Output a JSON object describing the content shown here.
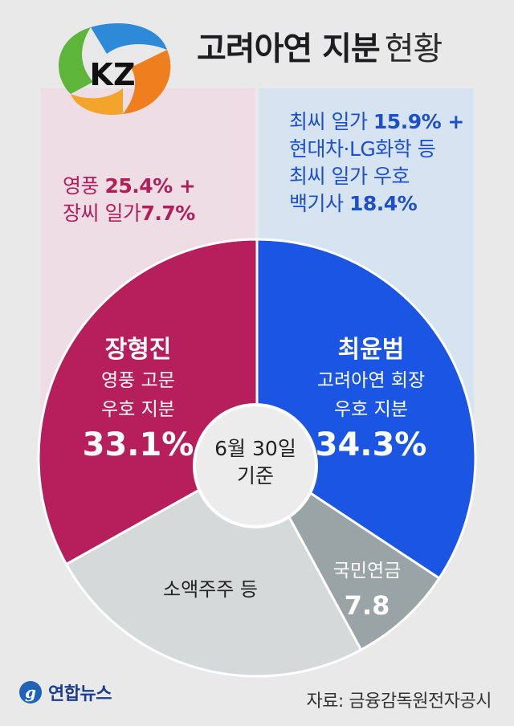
{
  "title": {
    "main": "고려아연 지분",
    "sub": "현황"
  },
  "logo": {
    "text": "KZ"
  },
  "left_panel": {
    "line1": {
      "text": "영풍 ",
      "num": "25.4% +"
    },
    "line2": {
      "text": "장씨 일가",
      "num": "7.7%"
    }
  },
  "right_panel": {
    "line1": {
      "text": "최씨 일가 ",
      "num": "15.9% +"
    },
    "line2": {
      "text": "현대차·LG화학 등"
    },
    "line3": {
      "text": "최씨 일가 우호"
    },
    "line4": {
      "text": "백기사 ",
      "num": "18.4%"
    }
  },
  "center": {
    "line1": "6월 30일",
    "line2": "기준"
  },
  "source": "자료: 금융감독원전자공시",
  "brand": "연합뉴스",
  "colors": {
    "left_panel_bg": "#efdde6",
    "right_panel_bg": "#d6e3f1",
    "jang": "#b61f5c",
    "choi": "#1a55e3",
    "nps": "#9aa3a5",
    "minor": "#d5d9da"
  },
  "chart_data": {
    "type": "pie",
    "title": "고려아연 지분 현황",
    "subtitle": "6월 30일 기준",
    "slices": [
      {
        "name": "최윤범",
        "lines": [
          "최윤범",
          "고려아연 회장",
          "우호 지분"
        ],
        "value": 34.3,
        "label": "34.3%",
        "color": "#1a55e3"
      },
      {
        "name": "국민연금",
        "lines": [
          "국민연금"
        ],
        "value": 7.8,
        "label": "7.8",
        "color": "#9aa3a5"
      },
      {
        "name": "소액주주 등",
        "lines": [
          "소액주주 등"
        ],
        "value": 24.8,
        "label": "",
        "color": "#d5d9da"
      },
      {
        "name": "장형진",
        "lines": [
          "장형진",
          "영풍 고문",
          "우호 지분"
        ],
        "value": 33.1,
        "label": "33.1%",
        "color": "#b61f5c"
      }
    ]
  }
}
